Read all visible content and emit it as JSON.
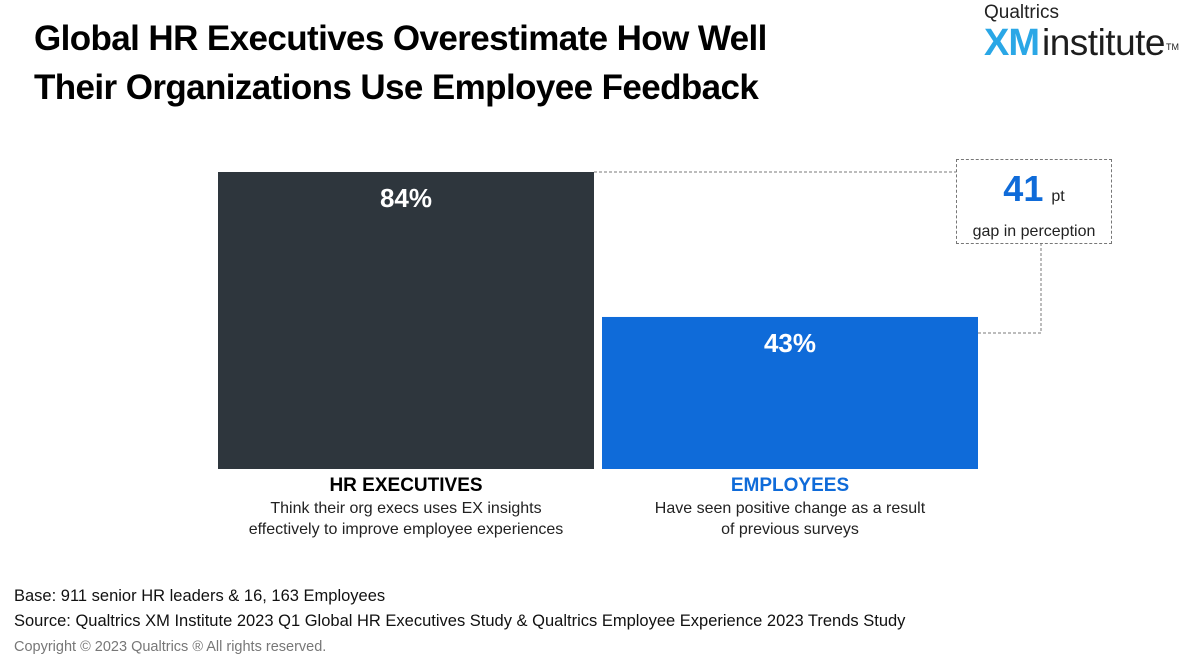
{
  "title": {
    "line1": "Global HR Executives Overestimate How Well",
    "line2": "Their Organizations Use Employee Feedback"
  },
  "logo": {
    "top": "Qualtrics",
    "xm": "XM",
    "institute": "institute",
    "tm": "TM"
  },
  "colors": {
    "hr_bar": "#2e363d",
    "employee_bar": "#0f6bd9",
    "employee_label": "#0f6bd9",
    "gap_number": "#0f6bd9"
  },
  "chart_data": {
    "type": "bar",
    "categories": [
      "HR EXECUTIVES",
      "EMPLOYEES"
    ],
    "values": [
      84,
      43
    ],
    "value_labels": [
      "84%",
      "43%"
    ],
    "descriptions": [
      [
        "Think their org execs uses EX insights",
        "effectively to improve employee experiences"
      ],
      [
        "Have seen positive change as a result",
        "of previous surveys"
      ]
    ],
    "ylim": [
      0,
      84
    ],
    "annotation": {
      "value": "41",
      "unit": "pt",
      "label": "gap in perception"
    }
  },
  "footer": {
    "base": "Base: 911 senior HR leaders & 16, 163 Employees",
    "source": "Source: Qualtrics XM Institute 2023 Q1 Global HR Executives Study & Qualtrics Employee Experience 2023 Trends Study",
    "copyright": "Copyright © 2023 Qualtrics ® All rights reserved."
  }
}
